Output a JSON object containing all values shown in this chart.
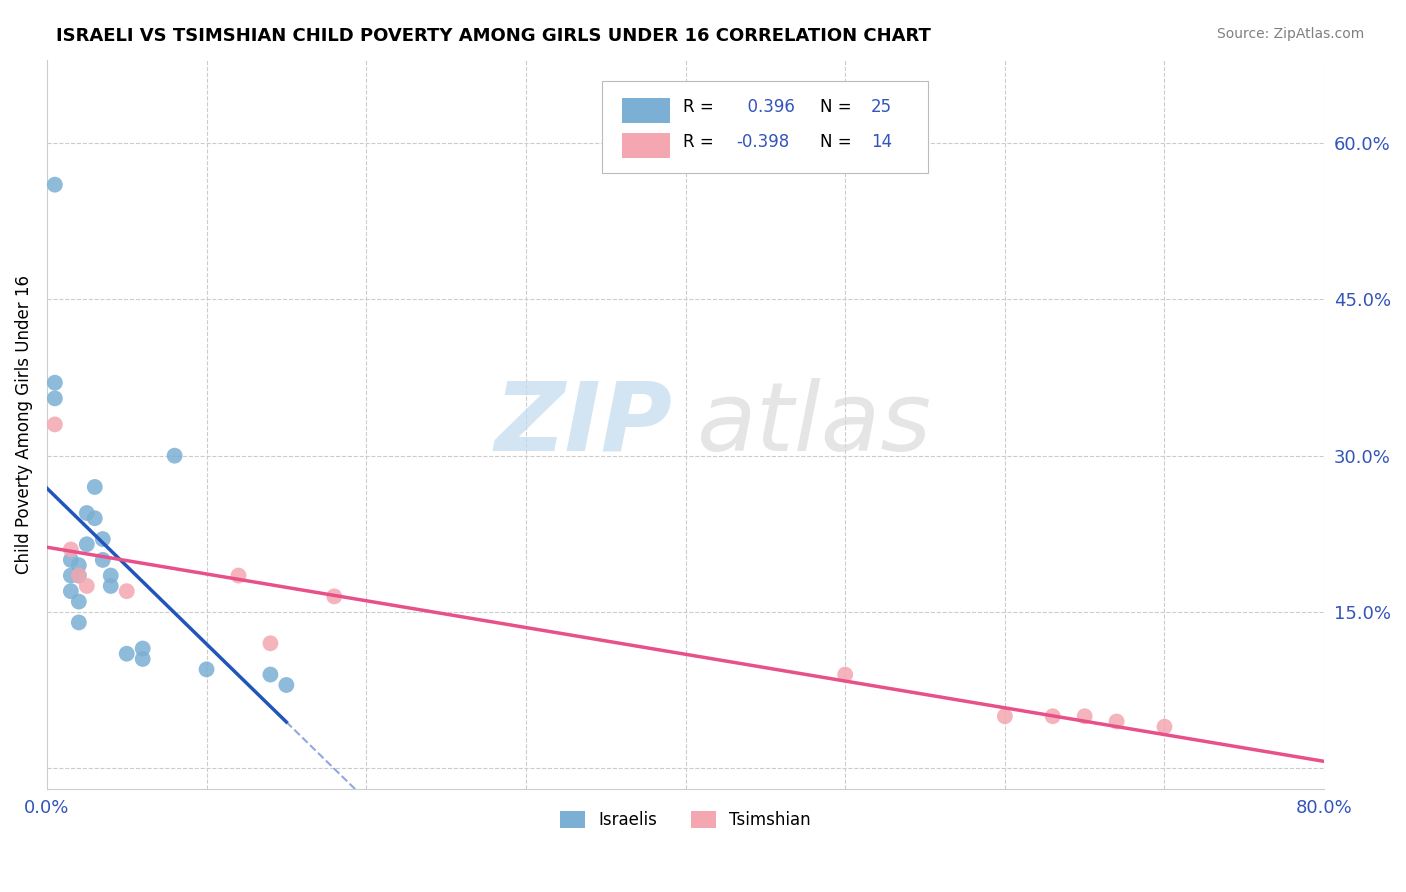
{
  "title": "ISRAELI VS TSIMSHIAN CHILD POVERTY AMONG GIRLS UNDER 16 CORRELATION CHART",
  "source": "Source: ZipAtlas.com",
  "ylabel": "Child Poverty Among Girls Under 16",
  "xlim": [
    0.0,
    0.8
  ],
  "ylim": [
    -0.02,
    0.68
  ],
  "xticks": [
    0.0,
    0.1,
    0.2,
    0.3,
    0.4,
    0.5,
    0.6,
    0.7,
    0.8
  ],
  "yticks_right": [
    0.0,
    0.15,
    0.3,
    0.45,
    0.6
  ],
  "ytick_labels_right": [
    "",
    "15.0%",
    "30.0%",
    "45.0%",
    "60.0%"
  ],
  "grid_color": "#cccccc",
  "background_color": "#ffffff",
  "israeli_color": "#7bafd4",
  "tsimshian_color": "#f4a7b0",
  "trendline_israeli_color": "#2255bb",
  "trendline_tsimshian_color": "#e8508a",
  "r_israeli": 0.396,
  "n_israeli": 25,
  "r_tsimshian": -0.398,
  "n_tsimshian": 14,
  "israeli_x": [
    0.005,
    0.005,
    0.005,
    0.015,
    0.015,
    0.015,
    0.02,
    0.02,
    0.02,
    0.02,
    0.025,
    0.025,
    0.03,
    0.03,
    0.035,
    0.035,
    0.04,
    0.04,
    0.05,
    0.06,
    0.06,
    0.08,
    0.1,
    0.14,
    0.15
  ],
  "israeli_y": [
    0.56,
    0.37,
    0.355,
    0.2,
    0.185,
    0.17,
    0.16,
    0.195,
    0.185,
    0.14,
    0.245,
    0.215,
    0.27,
    0.24,
    0.22,
    0.2,
    0.185,
    0.175,
    0.11,
    0.115,
    0.105,
    0.3,
    0.095,
    0.09,
    0.08
  ],
  "tsimshian_x": [
    0.005,
    0.015,
    0.02,
    0.025,
    0.05,
    0.12,
    0.14,
    0.18,
    0.5,
    0.6,
    0.63,
    0.65,
    0.67,
    0.7
  ],
  "tsimshian_y": [
    0.33,
    0.21,
    0.185,
    0.175,
    0.17,
    0.185,
    0.12,
    0.165,
    0.09,
    0.05,
    0.05,
    0.05,
    0.045,
    0.04
  ],
  "trendline_x_solid_start": 0.0,
  "trendline_x_solid_end": 0.15,
  "trendline_x_dash_start": 0.15,
  "trendline_x_dash_end": 0.42
}
